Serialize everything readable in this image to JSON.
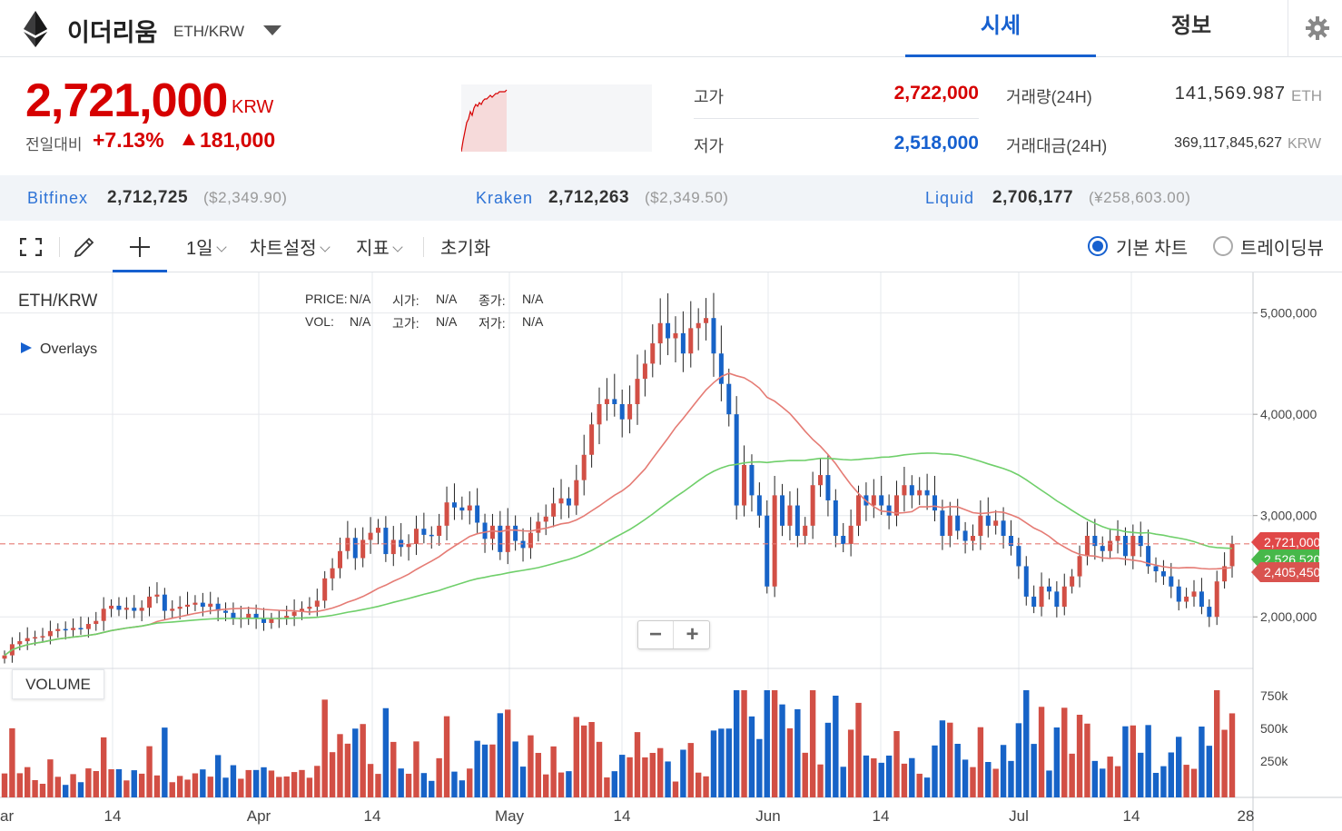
{
  "header": {
    "coin_name": "이더리움",
    "pair": "ETH/KRW",
    "tabs": [
      {
        "label": "시세",
        "active": true
      },
      {
        "label": "정보",
        "active": false
      }
    ],
    "icons": [
      "ethereum-logo-icon",
      "chevron-down-icon",
      "gear-icon"
    ]
  },
  "summary": {
    "price": "2,721,000",
    "price_unit": "KRW",
    "change_label": "전일대비",
    "change_rate": "+7.13%",
    "change_amount": "181,000",
    "high_label": "고가",
    "high": "2,722,000",
    "low_label": "저가",
    "low": "2,518,000",
    "volume_label": "거래량(24H)",
    "volume": "141,569.987",
    "volume_unit": "ETH",
    "amount_label": "거래대금(24H)",
    "amount": "369,117,845,627",
    "amount_unit": "KRW"
  },
  "exchanges": [
    {
      "name": "Bitfinex",
      "price": "2,712,725",
      "ref": "($2,349.90)"
    },
    {
      "name": "Kraken",
      "price": "2,712,263",
      "ref": "($2,349.50)"
    },
    {
      "name": "Liquid",
      "price": "2,706,177",
      "ref": "(¥258,603.00)"
    }
  ],
  "toolbar": {
    "interval": "1일",
    "chart_settings": "차트설정",
    "indicators": "지표",
    "reset": "초기화",
    "chart_modes": [
      {
        "label": "기본 차트",
        "selected": true
      },
      {
        "label": "트레이딩뷰",
        "selected": false
      }
    ],
    "icons": [
      "fullscreen-icon",
      "pencil-icon",
      "crosshair-icon"
    ]
  },
  "chart": {
    "symbol": "ETH/KRW",
    "overlays": "Overlays",
    "info": [
      {
        "label": "PRICE:",
        "value": "N/A"
      },
      {
        "label": "시가:",
        "value": "N/A"
      },
      {
        "label": "종가:",
        "value": "N/A"
      },
      {
        "label": "VOL:",
        "value": "N/A"
      },
      {
        "label": "고가:",
        "value": "N/A"
      },
      {
        "label": "저가:",
        "value": "N/A"
      }
    ],
    "zoom_out": "−",
    "zoom_in": "+",
    "volume_label": "VOLUME",
    "price_tags": [
      {
        "value": "2,721,000",
        "color": "#e04848"
      },
      {
        "value": "2,526,520",
        "color": "#47b84a"
      },
      {
        "value": "2,405,450",
        "color": "#d9534f"
      }
    ]
  },
  "chart_data": {
    "type": "candlestick",
    "y_ticks": [
      "5,000,000",
      "4,000,000",
      "3,000,000",
      "2,000,000"
    ],
    "volume_ticks": [
      "750k",
      "500k",
      "250k"
    ],
    "x_ticks": [
      "ar",
      "14",
      "Apr",
      "14",
      "May",
      "14",
      "Jun",
      "14",
      "Jul",
      "14",
      "28"
    ],
    "ylim": [
      1500000,
      5400000
    ],
    "current_price": 2721000,
    "ma_short_last": 2405450,
    "ma_long_last": 2526520,
    "series": [
      {
        "name": "close",
        "values": [
          1620000,
          1730000,
          1760000,
          1790000,
          1800000,
          1810000,
          1860000,
          1880000,
          1870000,
          1890000,
          1880000,
          1930000,
          1960000,
          2080000,
          2110000,
          2070000,
          2090000,
          2060000,
          2090000,
          2200000,
          2220000,
          2060000,
          2080000,
          2100000,
          2120000,
          2140000,
          2100000,
          2130000,
          2060000,
          2040000,
          1980000,
          1990000,
          2030000,
          1980000,
          1940000,
          1980000,
          1990000,
          2010000,
          2050000,
          2080000,
          2100000,
          2160000,
          2380000,
          2480000,
          2650000,
          2780000,
          2580000,
          2760000,
          2830000,
          2880000,
          2620000,
          2760000,
          2690000,
          2720000,
          2870000,
          2810000,
          2800000,
          2900000,
          3130000,
          3080000,
          3050000,
          3100000,
          2930000,
          2770000,
          2900000,
          2640000,
          2900000,
          2750000,
          2680000,
          2830000,
          2940000,
          2990000,
          3120000,
          3170000,
          3100000,
          3350000,
          3600000,
          3900000,
          4100000,
          4150000,
          4100000,
          3950000,
          4100000,
          4350000,
          4500000,
          4700000,
          4900000,
          4750000,
          4800000,
          4600000,
          4850000,
          4900000,
          4950000,
          4600000,
          4300000,
          4000000,
          3100000,
          3500000,
          3200000,
          3000000,
          2300000,
          3200000,
          2900000,
          3100000,
          2800000,
          2900000,
          3300000,
          3400000,
          3150000,
          2800000,
          2720000,
          2900000,
          3200000,
          3100000,
          3200000,
          3100000,
          3000000,
          3200000,
          3300000,
          3200000,
          3250000,
          3200000,
          3050000,
          2800000,
          3000000,
          2850000,
          2750000,
          2800000,
          3000000,
          2900000,
          2950000,
          2800000,
          2700000,
          2500000,
          2200000,
          2100000,
          2300000,
          2250000,
          2100000,
          2300000,
          2400000,
          2600000,
          2800000,
          2700000,
          2650000,
          2750000,
          2800000,
          2600000,
          2800000,
          2700000,
          2500000,
          2450000,
          2400000,
          2300000,
          2150000,
          2200000,
          2250000,
          2100000,
          2000000,
          2350000,
          2500000,
          2721000
        ]
      },
      {
        "name": "volume",
        "values": []
      }
    ]
  }
}
